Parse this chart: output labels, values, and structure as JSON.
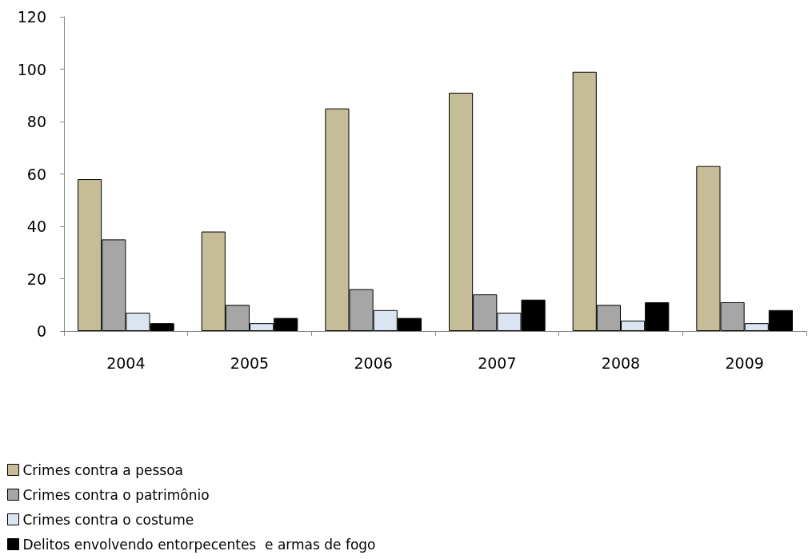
{
  "chart_data": {
    "type": "bar",
    "categories": [
      "2004",
      "2005",
      "2006",
      "2007",
      "2008",
      "2009"
    ],
    "series": [
      {
        "name": "Crimes contra a pessoa",
        "color": "#c4bd97",
        "values": [
          58,
          38,
          85,
          91,
          99,
          63
        ]
      },
      {
        "name": "Crimes contra o patrimônio",
        "color": "#a6a6a6",
        "values": [
          35,
          10,
          16,
          14,
          10,
          11
        ]
      },
      {
        "name": "Crimes contra o costume",
        "color": "#dbe5f1",
        "values": [
          7,
          3,
          8,
          7,
          4,
          3
        ]
      },
      {
        "name": "Delitos envolvendo entorpecentes  e armas de fogo",
        "color": "#000000",
        "values": [
          3,
          5,
          5,
          12,
          11,
          8
        ]
      }
    ],
    "ylim": [
      0,
      120
    ],
    "yticks": [
      0,
      20,
      40,
      60,
      80,
      100,
      120
    ],
    "grid": false,
    "legend": "bottom left"
  }
}
